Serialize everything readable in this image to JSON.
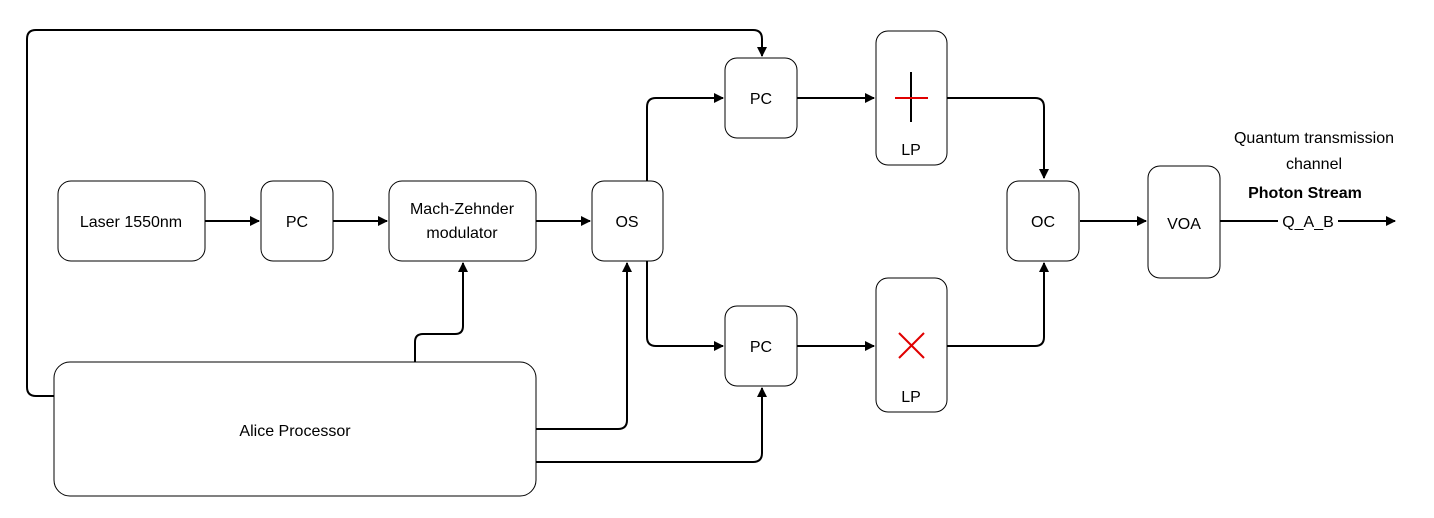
{
  "blocks": {
    "laser": "Laser 1550nm",
    "pc_input": "PC",
    "mzm_line1": "Mach-Zehnder",
    "mzm_line2": "modulator",
    "os": "OS",
    "pc_top": "PC",
    "pc_bottom": "PC",
    "lp_top": "LP",
    "lp_bottom": "LP",
    "oc": "OC",
    "voa": "VOA",
    "alice": "Alice Processor"
  },
  "output": {
    "channel_line1": "Quantum transmission",
    "channel_line2": "channel",
    "stream": "Photon Stream",
    "signal": "Q_A_B"
  },
  "colors": {
    "polarizer_mark": "#e00000",
    "line": "#000000"
  }
}
